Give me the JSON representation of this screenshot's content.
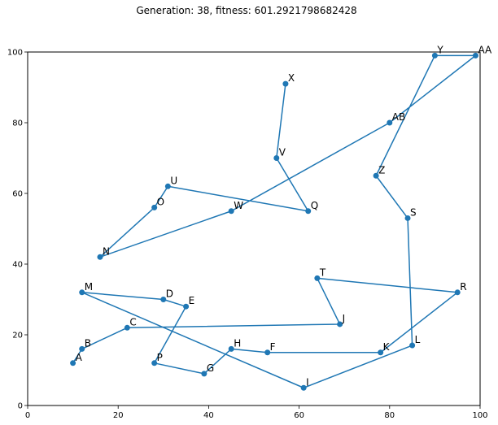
{
  "chart_data": {
    "type": "line",
    "title": "Generation: 38, fitness: 601.2921798682428",
    "xlabel": "",
    "ylabel": "",
    "xlim": [
      0,
      100
    ],
    "ylim": [
      0,
      100
    ],
    "xticks": [
      "0",
      "20",
      "40",
      "60",
      "80",
      "100"
    ],
    "yticks": [
      "0",
      "20",
      "40",
      "60",
      "80",
      "100"
    ],
    "grid": false,
    "series_color": "#1f77b4",
    "points": [
      {
        "label": "A",
        "x": 10,
        "y": 12
      },
      {
        "label": "B",
        "x": 12,
        "y": 16
      },
      {
        "label": "C",
        "x": 22,
        "y": 22
      },
      {
        "label": "J",
        "x": 69,
        "y": 23
      },
      {
        "label": "T",
        "x": 64,
        "y": 36
      },
      {
        "label": "R",
        "x": 95,
        "y": 32
      },
      {
        "label": "K",
        "x": 78,
        "y": 15
      },
      {
        "label": "F",
        "x": 53,
        "y": 15
      },
      {
        "label": "H",
        "x": 45,
        "y": 16
      },
      {
        "label": "G",
        "x": 39,
        "y": 9
      },
      {
        "label": "P",
        "x": 28,
        "y": 12
      },
      {
        "label": "E",
        "x": 35,
        "y": 28
      },
      {
        "label": "D",
        "x": 30,
        "y": 30
      },
      {
        "label": "M",
        "x": 12,
        "y": 32
      },
      {
        "label": "I",
        "x": 61,
        "y": 5
      },
      {
        "label": "L",
        "x": 85,
        "y": 17
      },
      {
        "label": "S",
        "x": 84,
        "y": 53
      },
      {
        "label": "Z",
        "x": 77,
        "y": 65
      },
      {
        "label": "Y",
        "x": 90,
        "y": 99
      },
      {
        "label": "AA",
        "x": 99,
        "y": 99
      },
      {
        "label": "AB",
        "x": 80,
        "y": 80
      },
      {
        "label": "W",
        "x": 45,
        "y": 55
      },
      {
        "label": "N",
        "x": 16,
        "y": 42
      },
      {
        "label": "O",
        "x": 28,
        "y": 56
      },
      {
        "label": "U",
        "x": 31,
        "y": 62
      },
      {
        "label": "Q",
        "x": 62,
        "y": 55
      },
      {
        "label": "V",
        "x": 55,
        "y": 70
      },
      {
        "label": "X",
        "x": 57,
        "y": 91
      }
    ]
  }
}
